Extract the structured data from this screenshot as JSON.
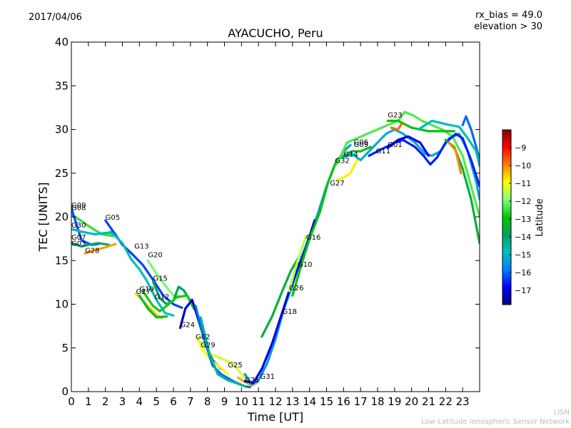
{
  "header": {
    "date": "2017/04/06",
    "rx_bias": "rx_bias = 49.0",
    "elevation": "elevation > 30"
  },
  "credit": {
    "line1": "LISN",
    "line2": "Low-Latitude Ionospheric Sensor Network"
  },
  "colorbar": {
    "label": "Latitude",
    "ticks": [
      -9,
      -10,
      -11,
      -12,
      -13,
      -14,
      -15,
      -16,
      -17
    ],
    "range": [
      -17.8,
      -8.0
    ],
    "colormap": [
      "#00007f",
      "#0000ff",
      "#007fff",
      "#00bfbf",
      "#00a060",
      "#00c800",
      "#7fff7f",
      "#ffff00",
      "#ff7f00",
      "#ff0000",
      "#7f0000"
    ]
  },
  "chart_data": {
    "type": "line",
    "title": "AYACUCHO, Peru",
    "xlabel": "Time [UT]",
    "ylabel": "TEC [UNITS]",
    "xlim": [
      0,
      24
    ],
    "ylim": [
      0,
      40
    ],
    "xticks": [
      0,
      1,
      2,
      3,
      4,
      5,
      6,
      7,
      8,
      9,
      10,
      11,
      12,
      13,
      14,
      15,
      16,
      17,
      18,
      19,
      20,
      21,
      22,
      23
    ],
    "yticks": [
      0,
      5,
      10,
      15,
      20,
      25,
      30,
      35,
      40
    ],
    "series": [
      {
        "lat": -12.5,
        "points": [
          [
            0.0,
            20.3
          ],
          [
            0.6,
            19.5
          ],
          [
            1.2,
            18.7
          ],
          [
            1.8,
            18.0
          ],
          [
            2.5,
            17.8
          ]
        ]
      },
      {
        "lat": -16.2,
        "points": [
          [
            0.0,
            21.0
          ],
          [
            0.6,
            17.3
          ],
          [
            1.2,
            16.8
          ],
          [
            1.6,
            16.9
          ]
        ]
      },
      {
        "lat": -15.0,
        "points": [
          [
            0.0,
            18.6
          ],
          [
            0.6,
            18.3
          ],
          [
            1.4,
            18.0
          ],
          [
            2.2,
            18.2
          ],
          [
            2.6,
            18.0
          ]
        ]
      },
      {
        "lat": -14.0,
        "points": [
          [
            0.0,
            17.0
          ],
          [
            0.6,
            16.6
          ],
          [
            1.0,
            16.8
          ],
          [
            1.6,
            17.0
          ],
          [
            2.2,
            16.8
          ]
        ]
      },
      {
        "lat": -10.2,
        "points": [
          [
            0.8,
            15.8
          ],
          [
            1.2,
            16.1
          ],
          [
            1.8,
            16.4
          ],
          [
            2.6,
            16.9
          ]
        ]
      },
      {
        "lat": -16.3,
        "points": [
          [
            2.0,
            19.6
          ],
          [
            2.4,
            18.5
          ],
          [
            3.0,
            16.8
          ],
          [
            3.6,
            15.7
          ],
          [
            4.2,
            14.5
          ],
          [
            4.8,
            12.8
          ],
          [
            5.4,
            11.0
          ],
          [
            6.0,
            10.0
          ],
          [
            6.5,
            9.6
          ]
        ]
      },
      {
        "lat": -14.8,
        "points": [
          [
            2.3,
            18.3
          ],
          [
            3.0,
            17.0
          ],
          [
            3.5,
            15.2
          ],
          [
            4.0,
            14.0
          ],
          [
            4.4,
            12.8
          ],
          [
            5.0,
            10.5
          ],
          [
            5.5,
            9.0
          ],
          [
            6.0,
            8.7
          ]
        ]
      },
      {
        "lat": -12.0,
        "points": [
          [
            4.5,
            15.0
          ],
          [
            5.0,
            13.5
          ],
          [
            5.5,
            12.2
          ],
          [
            6.0,
            11.0
          ],
          [
            6.3,
            11.0
          ]
        ]
      },
      {
        "lat": -13.8,
        "points": [
          [
            4.8,
            12.6
          ],
          [
            5.2,
            10.7
          ],
          [
            5.6,
            10.0
          ],
          [
            6.0,
            10.4
          ],
          [
            6.3,
            12.0
          ],
          [
            6.6,
            11.6
          ],
          [
            7.0,
            10.4
          ]
        ]
      },
      {
        "lat": -10.5,
        "points": [
          [
            3.8,
            11.2
          ],
          [
            4.4,
            10.0
          ],
          [
            5.0,
            8.8
          ],
          [
            5.3,
            8.4
          ]
        ]
      },
      {
        "lat": -13.2,
        "points": [
          [
            4.0,
            11.0
          ],
          [
            4.5,
            9.5
          ],
          [
            5.0,
            8.5
          ],
          [
            5.6,
            8.6
          ]
        ]
      },
      {
        "lat": -12.8,
        "points": [
          [
            4.2,
            11.5
          ],
          [
            4.8,
            9.8
          ],
          [
            5.2,
            9.2
          ],
          [
            5.6,
            9.8
          ],
          [
            6.2,
            10.8
          ],
          [
            6.8,
            11.0
          ],
          [
            7.2,
            9.5
          ]
        ]
      },
      {
        "lat": -17.2,
        "points": [
          [
            6.4,
            7.3
          ],
          [
            6.7,
            9.5
          ],
          [
            7.1,
            10.5
          ],
          [
            7.5,
            8.0
          ],
          [
            7.9,
            5.5
          ],
          [
            8.3,
            3.6
          ],
          [
            8.8,
            2.6
          ]
        ]
      },
      {
        "lat": -11.0,
        "points": [
          [
            7.4,
            6.2
          ],
          [
            7.7,
            4.8
          ],
          [
            8.1,
            3.8
          ],
          [
            8.6,
            3.0
          ],
          [
            9.2,
            2.0
          ]
        ]
      },
      {
        "lat": -11.3,
        "points": [
          [
            7.6,
            5.7
          ],
          [
            8.2,
            4.3
          ],
          [
            8.8,
            3.8
          ],
          [
            9.5,
            3.2
          ],
          [
            10.0,
            2.0
          ],
          [
            10.5,
            1.0
          ]
        ]
      },
      {
        "lat": -16.0,
        "points": [
          [
            7.3,
            9.8
          ],
          [
            7.8,
            6.0
          ],
          [
            8.3,
            3.0
          ],
          [
            8.8,
            2.0
          ],
          [
            9.6,
            1.1
          ],
          [
            10.2,
            0.6
          ],
          [
            10.5,
            0.5
          ]
        ]
      },
      {
        "lat": -14.5,
        "points": [
          [
            7.6,
            8.5
          ],
          [
            8.1,
            4.5
          ],
          [
            8.6,
            2.0
          ],
          [
            9.2,
            1.3
          ],
          [
            9.8,
            0.9
          ],
          [
            10.2,
            0.6
          ]
        ]
      },
      {
        "lat": -10.3,
        "points": [
          [
            9.8,
            1.6
          ],
          [
            10.2,
            1.1
          ],
          [
            10.6,
            0.7
          ],
          [
            10.9,
            1.0
          ]
        ]
      },
      {
        "lat": -15.5,
        "points": [
          [
            10.2,
            2.0
          ],
          [
            10.6,
            0.8
          ],
          [
            11.0,
            1.3
          ],
          [
            11.5,
            3.2
          ],
          [
            12.0,
            6.0
          ],
          [
            12.5,
            9.5
          ],
          [
            13.0,
            12.2
          ],
          [
            13.5,
            15.2
          ],
          [
            14.0,
            17.8
          ],
          [
            14.5,
            20.4
          ],
          [
            15.0,
            23.5
          ],
          [
            15.5,
            26.0
          ],
          [
            16.0,
            27.5
          ],
          [
            16.4,
            28.2
          ]
        ]
      },
      {
        "lat": -17.0,
        "points": [
          [
            10.2,
            1.2
          ],
          [
            10.7,
            1.0
          ],
          [
            11.2,
            2.6
          ],
          [
            11.8,
            5.5
          ],
          [
            12.3,
            8.5
          ],
          [
            12.8,
            11.5
          ],
          [
            13.3,
            14.0
          ],
          [
            13.8,
            16.5
          ],
          [
            14.3,
            19.6
          ]
        ]
      },
      {
        "lat": -13.5,
        "points": [
          [
            11.2,
            6.3
          ],
          [
            11.8,
            8.6
          ],
          [
            12.4,
            11.5
          ],
          [
            12.9,
            13.8
          ],
          [
            13.4,
            15.5
          ]
        ]
      },
      {
        "lat": -11.5,
        "points": [
          [
            12.8,
            11.5
          ],
          [
            13.3,
            15.0
          ],
          [
            13.8,
            17.8
          ]
        ]
      },
      {
        "lat": -13.0,
        "points": [
          [
            13.0,
            11.0
          ],
          [
            13.6,
            15.0
          ],
          [
            14.0,
            17.5
          ],
          [
            14.6,
            20.5
          ],
          [
            15.1,
            24.0
          ],
          [
            15.6,
            26.5
          ],
          [
            16.0,
            27.0
          ],
          [
            16.5,
            27.5
          ],
          [
            17.0,
            27.5
          ],
          [
            17.6,
            28.0
          ]
        ]
      },
      {
        "lat": -10.8,
        "points": [
          [
            15.6,
            24.2
          ],
          [
            16.0,
            24.5
          ],
          [
            16.4,
            25.0
          ],
          [
            16.8,
            26.5
          ]
        ]
      },
      {
        "lat": -12.3,
        "points": [
          [
            15.6,
            26.0
          ],
          [
            16.2,
            28.5
          ],
          [
            16.8,
            29.0
          ],
          [
            17.4,
            29.5
          ],
          [
            18.0,
            30.0
          ],
          [
            18.6,
            30.5
          ],
          [
            19.2,
            31.0
          ],
          [
            19.6,
            32.0
          ],
          [
            20.1,
            31.6
          ],
          [
            20.6,
            31.0
          ],
          [
            21.2,
            30.5
          ],
          [
            21.8,
            30.0
          ],
          [
            22.4,
            29.2
          ],
          [
            23.0,
            27.0
          ],
          [
            23.5,
            23.5
          ],
          [
            24.0,
            20.0
          ]
        ]
      },
      {
        "lat": -15.2,
        "points": [
          [
            16.0,
            26.8
          ],
          [
            16.5,
            27.2
          ],
          [
            17.0,
            26.5
          ],
          [
            17.5,
            27.5
          ],
          [
            18.0,
            28.5
          ],
          [
            18.5,
            29.5
          ],
          [
            19.0,
            30.0
          ],
          [
            19.5,
            29.5
          ],
          [
            20.2,
            28.5
          ],
          [
            20.8,
            27.2
          ],
          [
            21.2,
            27.0
          ],
          [
            21.7,
            27.5
          ],
          [
            22.2,
            29.0
          ],
          [
            22.8,
            29.5
          ],
          [
            23.3,
            27.5
          ],
          [
            23.8,
            24.0
          ],
          [
            24.0,
            22.0
          ]
        ]
      },
      {
        "lat": -16.6,
        "points": [
          [
            17.5,
            27.0
          ],
          [
            18.0,
            27.5
          ],
          [
            18.5,
            28.0
          ],
          [
            19.0,
            28.5
          ],
          [
            19.5,
            28.8
          ],
          [
            20.2,
            28.0
          ],
          [
            20.7,
            27.0
          ],
          [
            21.1,
            26.0
          ],
          [
            21.5,
            26.8
          ],
          [
            22.0,
            28.5
          ],
          [
            22.6,
            29.5
          ],
          [
            23.0,
            29.0
          ],
          [
            23.5,
            26.5
          ],
          [
            24.0,
            23.5
          ]
        ]
      },
      {
        "lat": -16.9,
        "points": [
          [
            18.6,
            27.9
          ],
          [
            19.2,
            28.8
          ],
          [
            19.8,
            29.2
          ],
          [
            20.5,
            28.5
          ],
          [
            21.0,
            27.0
          ]
        ]
      },
      {
        "lat": -13.0,
        "points": [
          [
            18.6,
            31.0
          ],
          [
            19.2,
            31.0
          ],
          [
            20.0,
            30.2
          ],
          [
            21.0,
            29.8
          ],
          [
            22.0,
            29.8
          ],
          [
            22.5,
            29.8
          ]
        ]
      },
      {
        "lat": -9.8,
        "points": [
          [
            18.8,
            30.2
          ],
          [
            19.2,
            30.0
          ],
          [
            19.4,
            30.6
          ]
        ]
      },
      {
        "lat": -16.0,
        "points": [
          [
            23.0,
            30.5
          ],
          [
            23.2,
            31.5
          ],
          [
            23.5,
            30.0
          ],
          [
            23.8,
            28.0
          ],
          [
            24.0,
            26.5
          ]
        ]
      },
      {
        "lat": -14.8,
        "points": [
          [
            20.4,
            30.0
          ],
          [
            21.2,
            31.0
          ],
          [
            22.0,
            30.6
          ],
          [
            22.8,
            30.3
          ],
          [
            23.3,
            29.0
          ],
          [
            23.8,
            27.5
          ],
          [
            24.0,
            25.8
          ]
        ]
      },
      {
        "lat": -13.5,
        "points": [
          [
            22.0,
            28.8
          ],
          [
            22.5,
            28.0
          ],
          [
            23.0,
            25.5
          ],
          [
            23.5,
            22.0
          ],
          [
            24.0,
            17.0
          ]
        ]
      },
      {
        "lat": -10.0,
        "points": [
          [
            22.2,
            28.5
          ],
          [
            22.6,
            27.6
          ],
          [
            22.9,
            25.0
          ]
        ]
      }
    ],
    "labels": [
      {
        "text": "G09",
        "x": 0.0,
        "y": 21.0
      },
      {
        "text": "G08",
        "x": 0.0,
        "y": 20.7
      },
      {
        "text": "G30",
        "x": 0.0,
        "y": 18.7
      },
      {
        "text": "G07",
        "x": 0.0,
        "y": 17.3
      },
      {
        "text": "G03",
        "x": 0.0,
        "y": 16.6
      },
      {
        "text": "G28",
        "x": 0.8,
        "y": 15.8
      },
      {
        "text": "G05",
        "x": 2.0,
        "y": 19.6
      },
      {
        "text": "G13",
        "x": 3.7,
        "y": 16.3
      },
      {
        "text": "G20",
        "x": 4.5,
        "y": 15.3
      },
      {
        "text": "G15",
        "x": 4.8,
        "y": 12.6
      },
      {
        "text": "G19",
        "x": 4.0,
        "y": 11.4
      },
      {
        "text": "G27",
        "x": 3.8,
        "y": 11.1
      },
      {
        "text": "G12",
        "x": 4.9,
        "y": 10.5
      },
      {
        "text": "G24",
        "x": 6.4,
        "y": 7.3
      },
      {
        "text": "G02",
        "x": 7.3,
        "y": 5.9
      },
      {
        "text": "G29",
        "x": 7.6,
        "y": 5.0
      },
      {
        "text": "G25",
        "x": 9.2,
        "y": 2.7
      },
      {
        "text": "G21",
        "x": 10.2,
        "y": 1.0
      },
      {
        "text": "G31",
        "x": 11.1,
        "y": 1.4
      },
      {
        "text": "G18",
        "x": 12.4,
        "y": 8.8
      },
      {
        "text": "G26",
        "x": 12.8,
        "y": 11.5
      },
      {
        "text": "G10",
        "x": 13.3,
        "y": 14.2
      },
      {
        "text": "G16",
        "x": 13.8,
        "y": 17.3
      },
      {
        "text": "G27",
        "x": 15.2,
        "y": 23.5
      },
      {
        "text": "G32",
        "x": 15.5,
        "y": 26.1
      },
      {
        "text": "G14",
        "x": 16.0,
        "y": 26.8
      },
      {
        "text": "G06",
        "x": 16.6,
        "y": 28.2
      },
      {
        "text": "G09",
        "x": 16.6,
        "y": 27.9
      },
      {
        "text": "G11",
        "x": 17.9,
        "y": 27.2
      },
      {
        "text": "G01",
        "x": 18.6,
        "y": 27.9
      },
      {
        "text": "G23",
        "x": 18.6,
        "y": 31.3
      }
    ]
  }
}
